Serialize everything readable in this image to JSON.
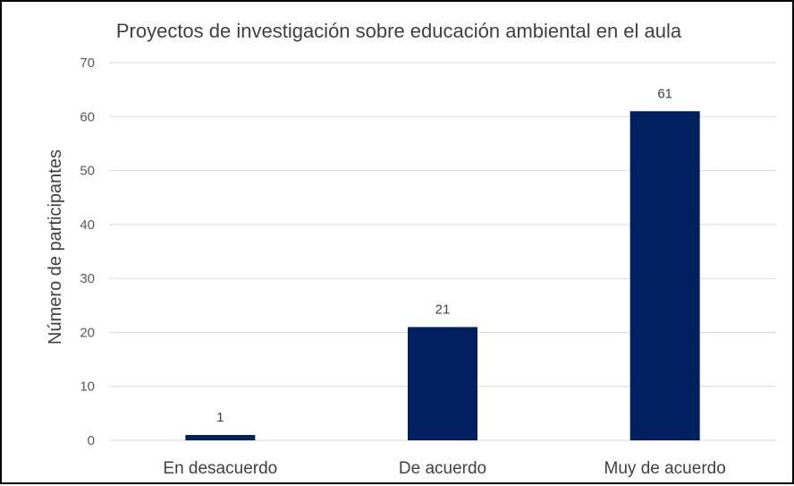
{
  "chart_data": {
    "type": "bar",
    "title": "Proyectos de investigación sobre educación ambiental en el aula",
    "xlabel": "",
    "ylabel": "Número de participantes",
    "categories": [
      "En desacuerdo",
      "De acuerdo",
      "Muy de acuerdo"
    ],
    "values": [
      1,
      21,
      61
    ],
    "data_labels": [
      "1",
      "21",
      "61"
    ],
    "ylim": [
      0,
      70
    ],
    "yticks": [
      0,
      10,
      20,
      30,
      40,
      50,
      60,
      70
    ],
    "ytick_labels": [
      "0",
      "10",
      "20",
      "30",
      "40",
      "50",
      "60",
      "70"
    ],
    "grid": true,
    "legend": "none",
    "colors": {
      "bar": "#002060",
      "grid": "#d9d9d9",
      "text": "#404040",
      "border": "#000000"
    }
  }
}
